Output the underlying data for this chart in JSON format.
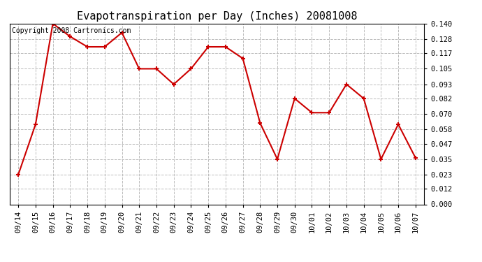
{
  "title": "Evapotranspiration per Day (Inches) 20081008",
  "copyright_text": "Copyright 2008 Cartronics.com",
  "dates": [
    "09/14",
    "09/15",
    "09/16",
    "09/17",
    "09/18",
    "09/19",
    "09/20",
    "09/21",
    "09/22",
    "09/23",
    "09/24",
    "09/25",
    "09/26",
    "09/27",
    "09/28",
    "09/29",
    "09/30",
    "10/01",
    "10/02",
    "10/03",
    "10/04",
    "10/05",
    "10/06",
    "10/07"
  ],
  "values": [
    0.023,
    0.062,
    0.14,
    0.13,
    0.122,
    0.122,
    0.133,
    0.105,
    0.105,
    0.093,
    0.105,
    0.122,
    0.122,
    0.113,
    0.063,
    0.035,
    0.082,
    0.071,
    0.071,
    0.093,
    0.082,
    0.035,
    0.062,
    0.036
  ],
  "ylim": [
    0.0,
    0.14
  ],
  "yticks": [
    0.0,
    0.012,
    0.023,
    0.035,
    0.047,
    0.058,
    0.07,
    0.082,
    0.093,
    0.105,
    0.117,
    0.128,
    0.14
  ],
  "line_color": "#cc0000",
  "marker": "+",
  "marker_size": 5,
  "marker_linewidth": 1.5,
  "line_width": 1.5,
  "background_color": "#ffffff",
  "plot_bg_color": "#ffffff",
  "grid_color": "#bbbbbb",
  "grid_style": "--",
  "title_fontsize": 11,
  "tick_fontsize": 7.5,
  "copyright_fontsize": 7
}
